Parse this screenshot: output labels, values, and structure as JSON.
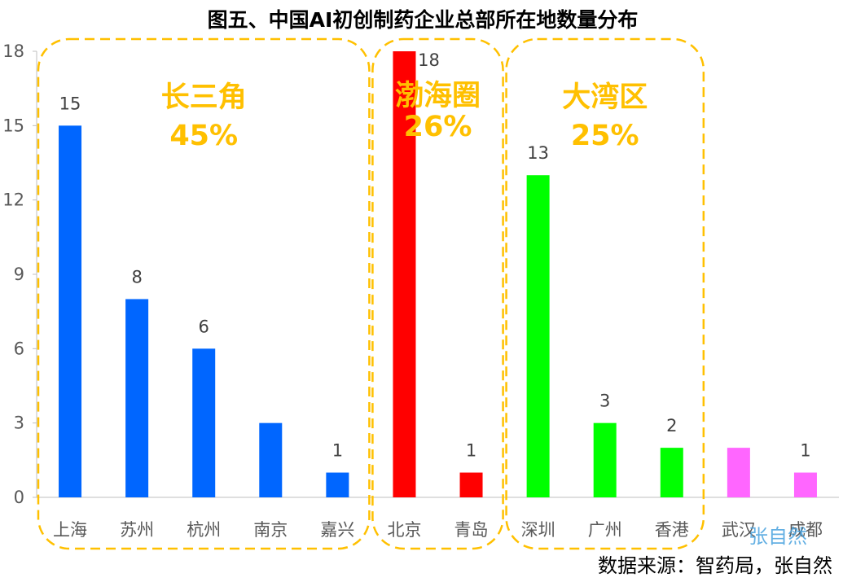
{
  "chart_data": {
    "type": "bar",
    "title": "图五、中国AI初创制药企业总部所在地数量分布",
    "categories": [
      "上海",
      "苏州",
      "杭州",
      "南京",
      "嘉兴",
      "北京",
      "青岛",
      "深圳",
      "广州",
      "香港",
      "武汉",
      "成都"
    ],
    "values": [
      15,
      8,
      6,
      3,
      1,
      18,
      1,
      13,
      3,
      2,
      2,
      1
    ],
    "data_labels": [
      "15",
      "8",
      "6",
      "",
      "1",
      "18",
      "1",
      "13",
      "3",
      "2",
      "",
      "1"
    ],
    "bar_colors": [
      "#0066ff",
      "#0066ff",
      "#0066ff",
      "#0066ff",
      "#0066ff",
      "#ff0000",
      "#ff0000",
      "#00ff00",
      "#00ff00",
      "#00ff00",
      "#ff66ff",
      "#ff66ff"
    ],
    "ylim": [
      0,
      18
    ],
    "yticks": [
      "0",
      "3",
      "6",
      "9",
      "12",
      "15",
      "18"
    ],
    "grid": false,
    "xlabel": "",
    "ylabel": "",
    "regions": [
      {
        "name": "长三角",
        "percent": "45%",
        "from": 0,
        "to": 4
      },
      {
        "name": "渤海圈",
        "percent": "26%",
        "from": 5,
        "to": 6
      },
      {
        "name": "大湾区",
        "percent": "25%",
        "from": 7,
        "to": 9
      }
    ],
    "region_color": "#ffc000"
  },
  "source": "数据来源：智药局，张自然",
  "watermark": "张自然"
}
